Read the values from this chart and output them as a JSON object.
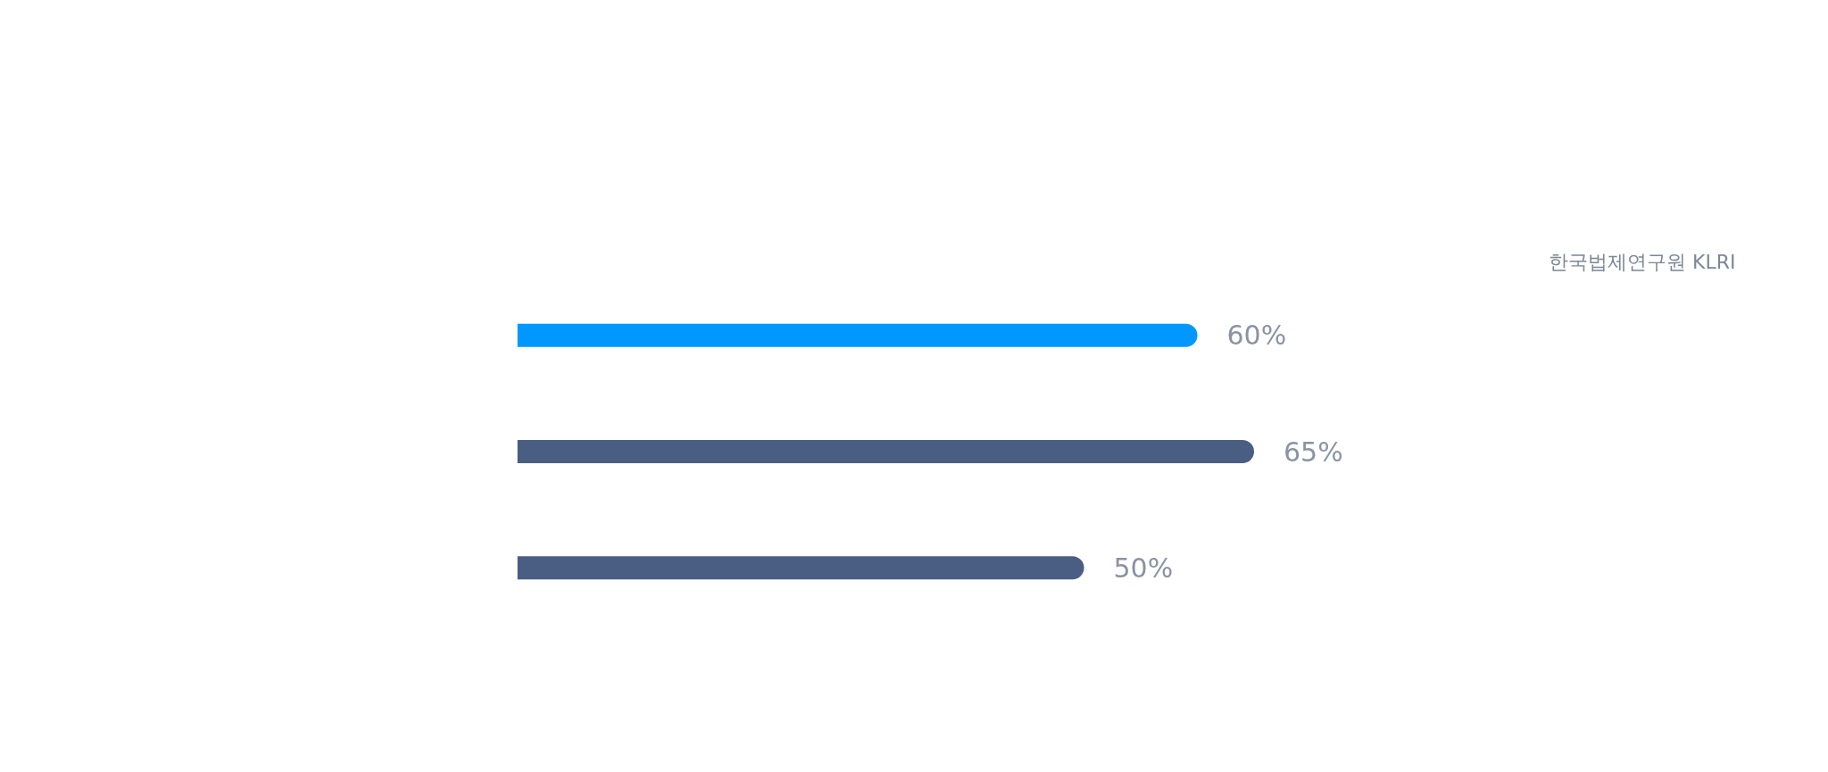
{
  "chart_data": {
    "type": "bar",
    "orientation": "horizontal",
    "categories": [
      null,
      null,
      null
    ],
    "values": [
      60,
      65,
      50
    ],
    "colors": [
      "#0098ff",
      "#4a5d82",
      "#4a5d82"
    ],
    "value_labels": [
      "60%",
      "65%",
      "50%"
    ],
    "tick_labels": false,
    "annotations": [
      "한국법제연구원 KLRI"
    ]
  }
}
